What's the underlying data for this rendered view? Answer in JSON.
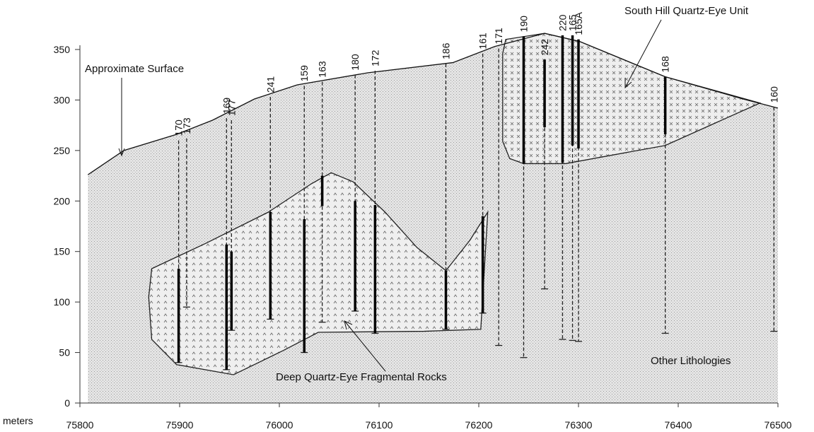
{
  "chart_data": {
    "type": "cross-section",
    "x_unit_label": "meters",
    "xlim": [
      75800,
      76500
    ],
    "xticks": [
      75800,
      75900,
      76000,
      76100,
      76200,
      76300,
      76400,
      76500
    ],
    "ylim": [
      0,
      385
    ],
    "yticks": [
      0,
      50,
      100,
      150,
      200,
      250,
      300,
      350
    ],
    "annotations": {
      "surface": "Approximate Surface",
      "south_hill": "South Hill Quartz-Eye Unit",
      "deep": "Deep Quartz-Eye Fragmental Rocks",
      "other": "Other Lithologies"
    },
    "surface": {
      "x": [
        75808,
        75844,
        75897,
        75933,
        75975,
        76018,
        76089,
        76174,
        76216,
        76266,
        76301,
        76387,
        76465,
        76500
      ],
      "y": [
        226,
        250,
        266,
        280,
        301,
        315,
        327,
        337,
        353,
        366,
        358,
        323,
        301,
        292
      ]
    },
    "south_hill_unit": {
      "x": [
        76227,
        76266,
        76301,
        76387,
        76482,
        76387,
        76287,
        76245,
        76231,
        76224,
        76224
      ],
      "y": [
        360,
        366,
        358,
        323,
        297,
        255,
        237,
        237,
        242,
        259,
        346
      ]
    },
    "deep_unit": {
      "x": [
        75872,
        75926,
        75989,
        76032,
        76052,
        76074,
        76106,
        76138,
        76167,
        76191,
        76209,
        76202,
        76145,
        76039,
        76004,
        75954,
        75897,
        75872,
        75869
      ],
      "y": [
        133,
        158,
        189,
        217,
        228,
        219,
        189,
        154,
        131,
        161,
        189,
        73,
        71,
        70,
        52,
        28,
        38,
        63,
        105
      ]
    },
    "drill_holes": [
      {
        "name": "170",
        "x": 75899,
        "top": 260,
        "bottom": 40,
        "intervals": [
          [
            133,
            40
          ]
        ]
      },
      {
        "name": "173",
        "x": 75907,
        "top": 262,
        "bottom": 95,
        "intervals": []
      },
      {
        "name": "169",
        "x": 75947,
        "top": 282,
        "bottom": 33,
        "intervals": [
          [
            157,
            33
          ]
        ]
      },
      {
        "name": "177",
        "x": 75952,
        "top": 280,
        "bottom": 72,
        "intervals": [
          [
            150,
            72
          ]
        ]
      },
      {
        "name": "241",
        "x": 75991,
        "top": 303,
        "bottom": 83,
        "intervals": [
          [
            189,
            83
          ]
        ]
      },
      {
        "name": "159",
        "x": 76025,
        "top": 314,
        "bottom": 50,
        "intervals": [
          [
            182,
            50
          ]
        ]
      },
      {
        "name": "163",
        "x": 76043,
        "top": 318,
        "bottom": 80,
        "intervals": [
          [
            225,
            195
          ]
        ]
      },
      {
        "name": "180",
        "x": 76076,
        "top": 325,
        "bottom": 91,
        "intervals": [
          [
            200,
            91
          ]
        ]
      },
      {
        "name": "172",
        "x": 76096,
        "top": 329,
        "bottom": 69,
        "intervals": [
          [
            196,
            69
          ]
        ]
      },
      {
        "name": "186",
        "x": 76167,
        "top": 336,
        "bottom": 73,
        "intervals": [
          [
            131,
            73
          ]
        ]
      },
      {
        "name": "161",
        "x": 76204,
        "top": 346,
        "bottom": 89,
        "intervals": [
          [
            185,
            89
          ]
        ]
      },
      {
        "name": "171",
        "x": 76220,
        "top": 351,
        "bottom": 57,
        "intervals": []
      },
      {
        "name": "190",
        "x": 76245,
        "top": 363,
        "bottom": 45,
        "intervals": [
          [
            363,
            237
          ]
        ]
      },
      {
        "name": "242",
        "x": 76266,
        "top": 340,
        "bottom": 113,
        "intervals": [
          [
            340,
            273
          ]
        ]
      },
      {
        "name": "220",
        "x": 76284,
        "top": 364,
        "bottom": 63,
        "intervals": [
          [
            364,
            238
          ]
        ]
      },
      {
        "name": "165",
        "x": 76294,
        "top": 364,
        "bottom": 62,
        "intervals": [
          [
            364,
            255
          ]
        ]
      },
      {
        "name": "165A",
        "x": 76300,
        "top": 360,
        "bottom": 61,
        "intervals": [
          [
            360,
            252
          ]
        ]
      },
      {
        "name": "168",
        "x": 76387,
        "top": 323,
        "bottom": 69,
        "intervals": [
          [
            323,
            266
          ]
        ]
      },
      {
        "name": "160",
        "x": 76496,
        "top": 293,
        "bottom": 71,
        "intervals": []
      }
    ]
  }
}
